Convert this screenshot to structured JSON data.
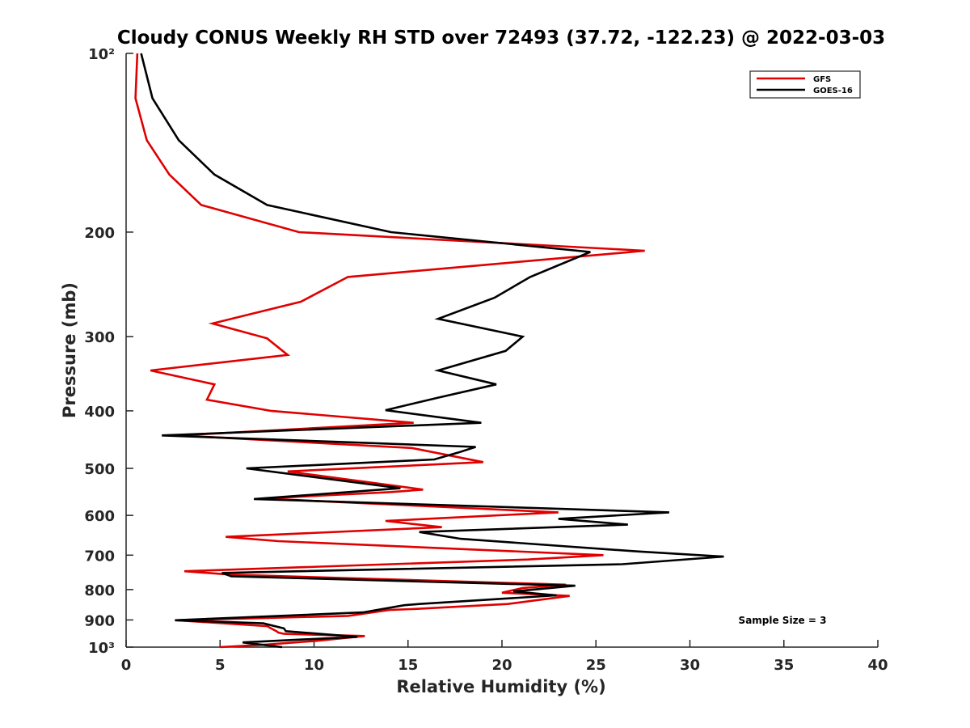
{
  "chart_data": {
    "type": "line",
    "title": "Cloudy CONUS Weekly RH STD over 72493 (37.72, -122.23) @ 2022-03-03",
    "xlabel": "Relative Humidity (%)",
    "ylabel": "Pressure (mb)",
    "xlim": [
      0,
      40
    ],
    "ylim": [
      100,
      1000
    ],
    "y_scale": "log",
    "y_reversed": true,
    "x_ticks": [
      0,
      5,
      10,
      15,
      20,
      25,
      30,
      35,
      40
    ],
    "x_tick_labels": [
      "0",
      "5",
      "10",
      "15",
      "20",
      "25",
      "30",
      "35",
      "40"
    ],
    "y_ticks": [
      100,
      200,
      300,
      400,
      500,
      600,
      700,
      800,
      900,
      1000
    ],
    "y_tick_labels": [
      "10²",
      "200",
      "300",
      "400",
      "500",
      "600",
      "700",
      "800",
      "900",
      "10³"
    ],
    "grid": false,
    "legend": {
      "position": "top-right"
    },
    "annotation": "Sample Size = 3",
    "series": [
      {
        "name": "GFS",
        "color": "#e00000",
        "points": [
          [
            0.6,
            100
          ],
          [
            0.5,
            119
          ],
          [
            1.1,
            140
          ],
          [
            2.3,
            160
          ],
          [
            4.0,
            180
          ],
          [
            9.2,
            200
          ],
          [
            27.6,
            215
          ],
          [
            11.8,
            238
          ],
          [
            9.3,
            262
          ],
          [
            4.6,
            285
          ],
          [
            7.5,
            302
          ],
          [
            8.6,
            322
          ],
          [
            1.3,
            342
          ],
          [
            4.7,
            361
          ],
          [
            4.3,
            383
          ],
          [
            7.7,
            400
          ],
          [
            15.3,
            419
          ],
          [
            2.8,
            440
          ],
          [
            15.2,
            462
          ],
          [
            19.0,
            488
          ],
          [
            8.6,
            506
          ],
          [
            15.8,
            543
          ],
          [
            14.1,
            548
          ],
          [
            7.3,
            562
          ],
          [
            23.0,
            593
          ],
          [
            13.8,
            613
          ],
          [
            16.8,
            628
          ],
          [
            5.3,
            652
          ],
          [
            8.1,
            663
          ],
          [
            25.4,
            700
          ],
          [
            21.4,
            712
          ],
          [
            3.1,
            745
          ],
          [
            5.6,
            755
          ],
          [
            23.4,
            785
          ],
          [
            21.1,
            795
          ],
          [
            20.0,
            810
          ],
          [
            23.6,
            820
          ],
          [
            20.3,
            846
          ],
          [
            15.5,
            862
          ],
          [
            14.0,
            866
          ],
          [
            11.8,
            886
          ],
          [
            2.7,
            901
          ],
          [
            7.5,
            922
          ],
          [
            8.0,
            940
          ],
          [
            8.1,
            945
          ],
          [
            8.4,
            950
          ],
          [
            12.7,
            958
          ],
          [
            10.1,
            976
          ],
          [
            7.5,
            990
          ],
          [
            5.0,
            1000
          ]
        ]
      },
      {
        "name": "GOES-16",
        "color": "#000000",
        "points": [
          [
            0.8,
            100
          ],
          [
            1.4,
            119
          ],
          [
            2.8,
            140
          ],
          [
            4.7,
            160
          ],
          [
            7.5,
            180
          ],
          [
            14.1,
            200
          ],
          [
            24.7,
            216
          ],
          [
            21.5,
            238
          ],
          [
            19.6,
            258
          ],
          [
            16.6,
            280
          ],
          [
            21.1,
            300
          ],
          [
            20.2,
            317
          ],
          [
            16.6,
            342
          ],
          [
            19.7,
            361
          ],
          [
            16.6,
            380
          ],
          [
            13.8,
            399
          ],
          [
            18.9,
            419
          ],
          [
            1.9,
            440
          ],
          [
            18.6,
            460
          ],
          [
            17.7,
            470
          ],
          [
            16.4,
            483
          ],
          [
            6.4,
            500
          ],
          [
            14.6,
            540
          ],
          [
            6.8,
            563
          ],
          [
            28.9,
            593
          ],
          [
            23.0,
            608
          ],
          [
            26.7,
            622
          ],
          [
            15.6,
            640
          ],
          [
            17.8,
            657
          ],
          [
            27.2,
            690
          ],
          [
            31.8,
            704
          ],
          [
            26.4,
            725
          ],
          [
            5.1,
            750
          ],
          [
            5.6,
            760
          ],
          [
            23.9,
            788
          ],
          [
            20.6,
            806
          ],
          [
            22.9,
            818
          ],
          [
            15.6,
            846
          ],
          [
            14.8,
            850
          ],
          [
            12.6,
            874
          ],
          [
            2.6,
            901
          ],
          [
            7.3,
            912
          ],
          [
            8.4,
            930
          ],
          [
            8.5,
            940
          ],
          [
            12.3,
            961
          ],
          [
            6.2,
            982
          ],
          [
            8.3,
            1000
          ]
        ]
      }
    ]
  }
}
